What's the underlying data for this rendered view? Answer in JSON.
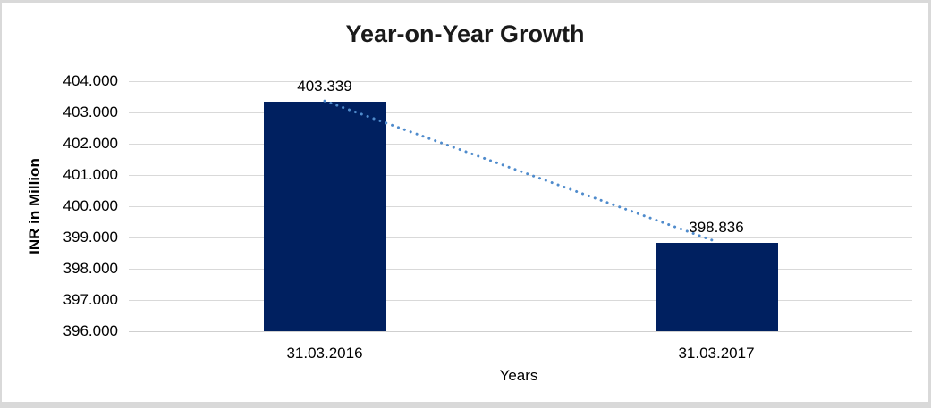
{
  "chart_data": {
    "type": "bar",
    "title": "Year-on-Year Growth",
    "categories": [
      "31.03.2016",
      "31.03.2017"
    ],
    "values": [
      403.339,
      398.836
    ],
    "data_labels": [
      "403.339",
      "398.836"
    ],
    "xlabel": "Years",
    "ylabel": "INR in Million",
    "ylim": [
      396,
      404
    ],
    "ytick_values": [
      404,
      403,
      402,
      401,
      400,
      399,
      398,
      397,
      396
    ],
    "ytick_labels": [
      "404.000",
      "403.000",
      "402.000",
      "401.000",
      "400.000",
      "399.000",
      "398.000",
      "397.000",
      "396.000"
    ],
    "grid": true,
    "legend": false,
    "bar_color": "#002060",
    "gridline_color": "#d9d9d9",
    "trendline": {
      "style": "dotted",
      "color": "#4f8bcc",
      "from_value": 403.339,
      "to_value": 398.836
    }
  }
}
